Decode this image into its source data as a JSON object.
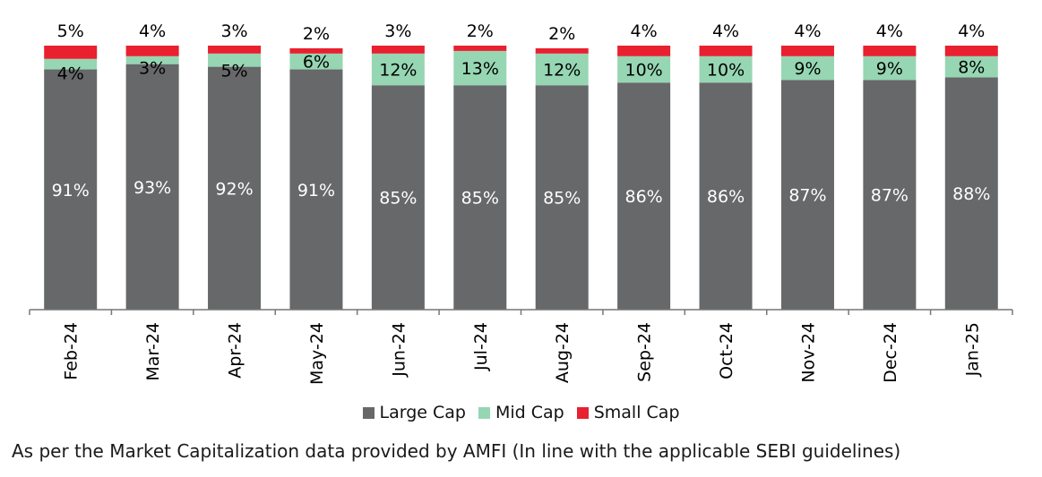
{
  "chart_data": {
    "type": "bar",
    "stacked": true,
    "categories": [
      "Feb-24",
      "Mar-24",
      "Apr-24",
      "May-24",
      "Jun-24",
      "Jul-24",
      "Aug-24",
      "Sep-24",
      "Oct-24",
      "Nov-24",
      "Dec-24",
      "Jan-25"
    ],
    "series": [
      {
        "name": "Large Cap",
        "color": "#666869",
        "values": [
          91,
          93,
          92,
          91,
          85,
          85,
          85,
          86,
          86,
          87,
          87,
          88
        ],
        "labels": [
          "91%",
          "93%",
          "92%",
          "91%",
          "85%",
          "85%",
          "85%",
          "86%",
          "86%",
          "87%",
          "87%",
          "88%"
        ]
      },
      {
        "name": "Mid Cap",
        "color": "#96d6b3",
        "values": [
          4,
          3,
          5,
          6,
          12,
          13,
          12,
          10,
          10,
          9,
          9,
          8
        ],
        "labels": [
          "4%",
          "3%",
          "5%",
          "6%",
          "12%",
          "13%",
          "12%",
          "10%",
          "10%",
          "9%",
          "9%",
          "8%"
        ]
      },
      {
        "name": "Small Cap",
        "color": "#e8202f",
        "values": [
          5,
          4,
          3,
          2,
          3,
          2,
          2,
          4,
          4,
          4,
          4,
          4
        ],
        "labels": [
          "5%",
          "4%",
          "3%",
          "2%",
          "3%",
          "2%",
          "2%",
          "4%",
          "4%",
          "4%",
          "4%",
          "4%"
        ]
      }
    ],
    "ylim": [
      0,
      100
    ],
    "grid": false,
    "legend_position": "bottom"
  },
  "footnote": "As per the Market Capitalization data provided by AMFI (In line with the applicable SEBI guidelines)"
}
